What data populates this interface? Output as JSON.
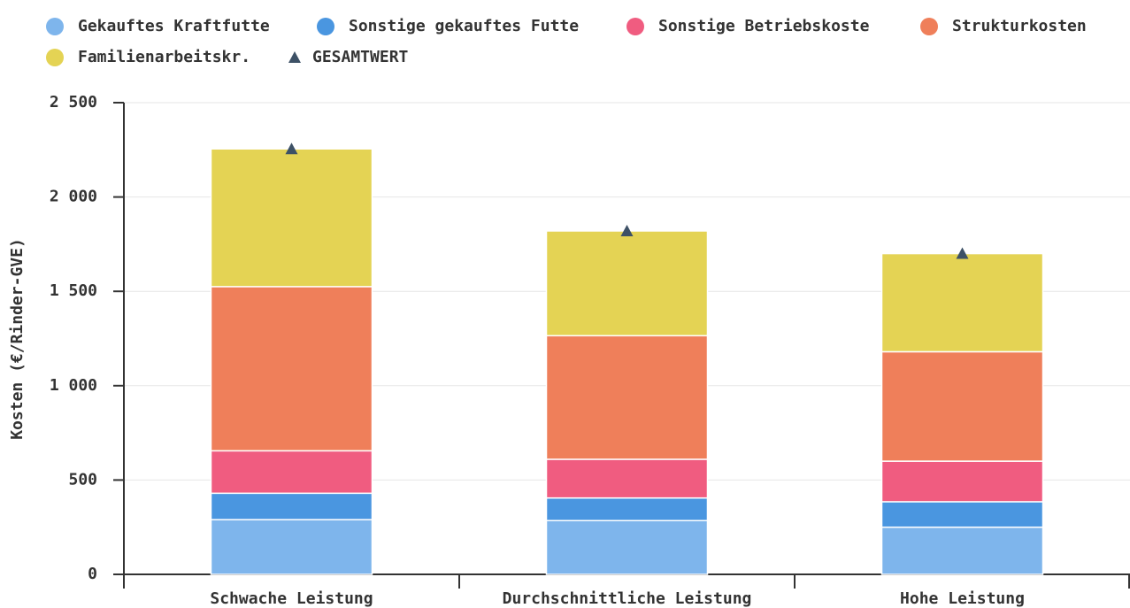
{
  "chart_data": {
    "type": "stacked-bar",
    "y_label": "Kosten (€/Rinder-GVE)",
    "categories": [
      "Schwache Leistung",
      "Durchschnittliche Leistung",
      "Hohe Leistung"
    ],
    "series": [
      {
        "name": "Gekauftes Kraftfutte",
        "color": "#7eb5ec",
        "values": [
          290,
          285,
          250
        ]
      },
      {
        "name": "Sonstige gekauftes Futte",
        "color": "#4a96e0",
        "values": [
          140,
          120,
          135
        ]
      },
      {
        "name": "Sonstige Betriebskoste",
        "color": "#f05c80",
        "values": [
          225,
          205,
          215
        ]
      },
      {
        "name": "Strukturkosten",
        "color": "#ef7f5a",
        "values": [
          870,
          655,
          580
        ]
      },
      {
        "name": "Familienarbeitskr.",
        "color": "#e4d354",
        "values": [
          730,
          555,
          520
        ]
      },
      {
        "name": "GESAMTWERT",
        "color": "#3d5166",
        "type": "scatter",
        "values": [
          2255,
          1820,
          1700
        ]
      }
    ],
    "ylim": [
      0,
      2500
    ],
    "yticks": [
      0,
      500,
      {
        "value": 1000,
        "label": "1 000"
      },
      {
        "value": 1500,
        "label": "1 500"
      },
      {
        "value": 2000,
        "label": "2 000"
      },
      {
        "value": 2500,
        "label": "2 500"
      }
    ],
    "grid": true
  }
}
